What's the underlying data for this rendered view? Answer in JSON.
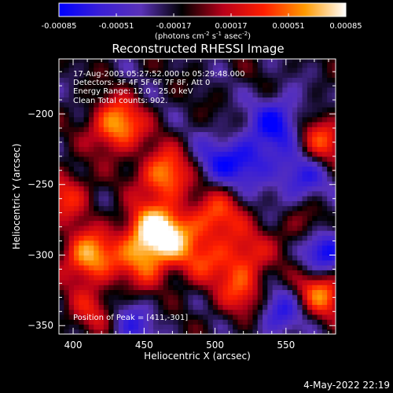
{
  "chart_data": {
    "type": "heatmap",
    "title": "Reconstructed RHESSI Image",
    "xlabel": "Heliocentric X (arcsec)",
    "ylabel": "Heliocentric Y (arcsec)",
    "x_range": [
      390,
      585
    ],
    "y_range": [
      -356,
      -161
    ],
    "x_ticks": [
      400,
      450,
      500,
      550
    ],
    "y_ticks": [
      -200,
      -250,
      -300,
      -350
    ],
    "annotations": [
      "17-Aug-2003 05:27:52.000 to 05:29:48.000",
      "Detectors: 3F 4F 5F 6F 7F 8F, Att 0",
      "Energy Range: 12.0 - 25.0 keV",
      "Clean    Total counts: 902."
    ],
    "peak_label": "Position of Peak = [411,-301]",
    "peak": [
      411,
      -301
    ],
    "colorbar": {
      "min": -0.00085,
      "max": 0.00085,
      "tick_values": [
        -0.00085,
        -0.00051,
        -0.00017,
        0.00017,
        0.00051,
        0.00085
      ],
      "tick_labels": [
        "-0.00085",
        "-0.00051",
        "-0.00017",
        "0.00017",
        "0.00051",
        "0.00085"
      ],
      "unit": "(photons cm-2 s-1 asec-2)",
      "unit_parts": {
        "a": "(photons cm",
        "exp1": "-2",
        "b": " s",
        "exp2": "-1",
        "c": " asec",
        "exp3": "-2",
        "d": ")"
      },
      "colors": [
        "#0000ff",
        "#3a1fd6",
        "#5a32b8",
        "#000000",
        "#b8001a",
        "#ff1e00",
        "#ff9a00",
        "#ffffff"
      ]
    },
    "sources": [
      {
        "x": 431,
        "y": -208,
        "value": 0.00085
      },
      {
        "x": 411,
        "y": -301,
        "value": 0.00085
      },
      {
        "x": 465,
        "y": -243,
        "value": 0.0008
      },
      {
        "x": 452,
        "y": -282,
        "value": 0.0007
      },
      {
        "x": 468,
        "y": -286,
        "value": 0.00068
      },
      {
        "x": 450,
        "y": -305,
        "value": 0.00055
      },
      {
        "x": 500,
        "y": -272,
        "value": 0.0006
      },
      {
        "x": 520,
        "y": -300,
        "value": 0.0005
      },
      {
        "x": 520,
        "y": -327,
        "value": 0.0005
      },
      {
        "x": 575,
        "y": -326,
        "value": 0.0007
      },
      {
        "x": 575,
        "y": -218,
        "value": 0.00055
      },
      {
        "x": 565,
        "y": -285,
        "value": 0.0005
      },
      {
        "x": 395,
        "y": -257,
        "value": 0.0005
      },
      {
        "x": 415,
        "y": -340,
        "value": 0.0004
      },
      {
        "x": 490,
        "y": -305,
        "value": 0.0004
      },
      {
        "x": 525,
        "y": -232,
        "value": -0.0005
      },
      {
        "x": 545,
        "y": -205,
        "value": -0.0006
      },
      {
        "x": 560,
        "y": -245,
        "value": -0.0005
      },
      {
        "x": 575,
        "y": -295,
        "value": -0.00085
      },
      {
        "x": 545,
        "y": -340,
        "value": -0.0005
      },
      {
        "x": 500,
        "y": -235,
        "value": -0.0004
      },
      {
        "x": 440,
        "y": -350,
        "value": -0.0004
      }
    ]
  },
  "footer": {
    "timestamp": "4-May-2022 22:19"
  }
}
